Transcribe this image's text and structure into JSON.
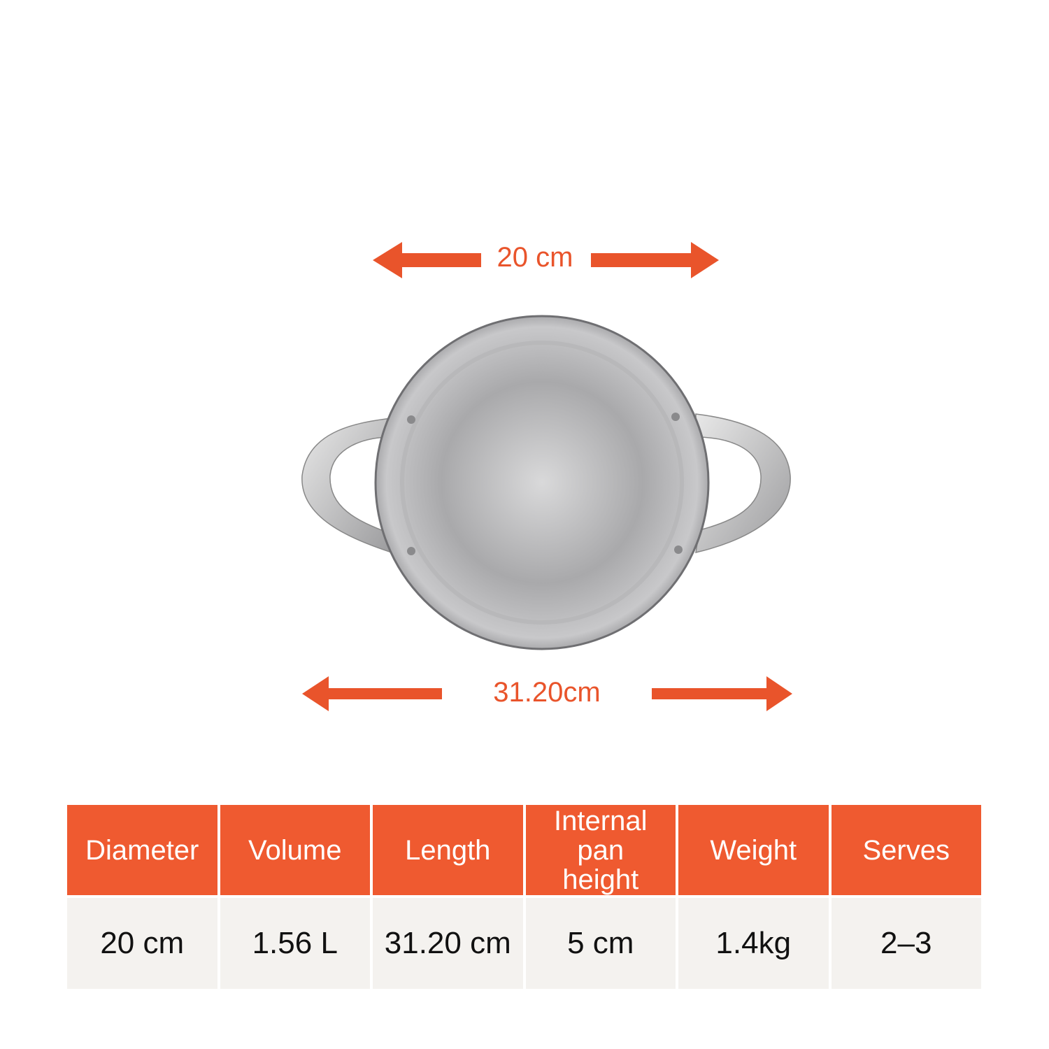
{
  "dimensions": {
    "diameter_label": "20 cm",
    "length_label": "31.20cm",
    "accent_color": "#ef5a30"
  },
  "table": {
    "headers": [
      "Diameter",
      "Volume",
      "Length",
      "Internal pan height",
      "Weight",
      "Serves"
    ],
    "values": [
      "20 cm",
      "1.56 L",
      "31.20 cm",
      "5 cm",
      "1.4kg",
      "2–3"
    ]
  }
}
